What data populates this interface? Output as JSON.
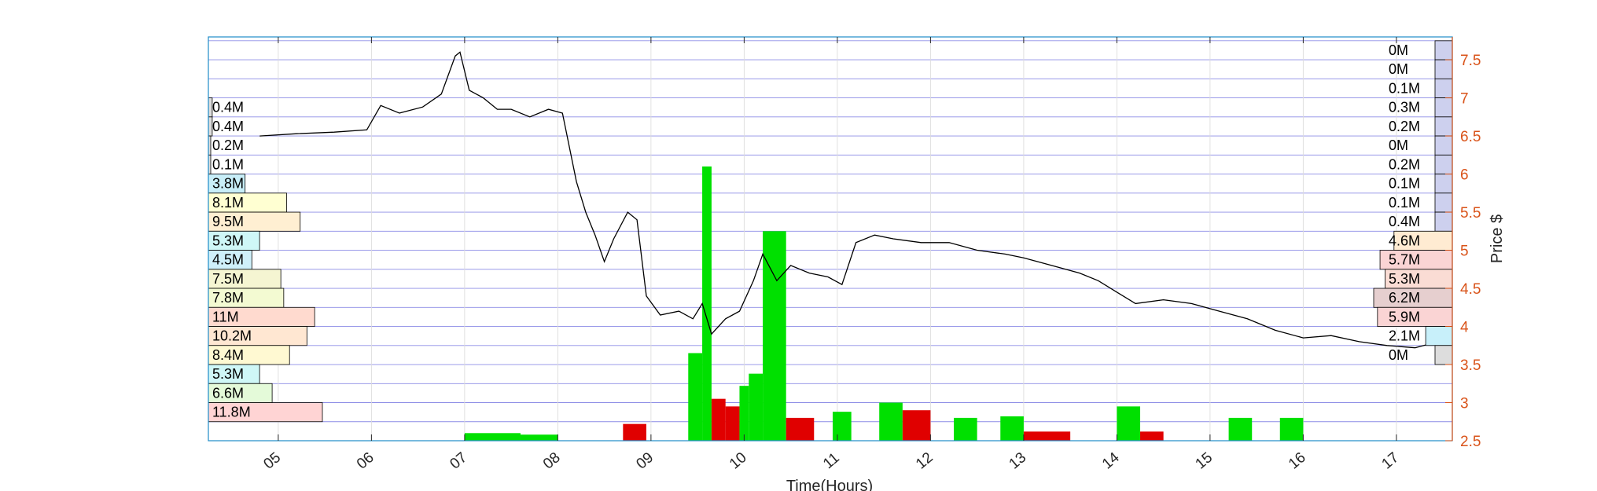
{
  "chart_data": {
    "type": "line",
    "title": "",
    "xlabel": "Time(Hours)",
    "ylabel": "Price $",
    "xlim": [
      4.25,
      17.6
    ],
    "ylim": [
      2.5,
      7.8
    ],
    "x_ticks": [
      "05",
      "06",
      "07",
      "08",
      "09",
      "10",
      "11",
      "12",
      "13",
      "14",
      "15",
      "16",
      "17"
    ],
    "y_ticks": [
      "2.5",
      "3",
      "3.5",
      "4",
      "4.5",
      "5",
      "5.5",
      "6",
      "6.5",
      "7",
      "7.5"
    ],
    "grid": true,
    "price_series": {
      "x": [
        4.8,
        5.2,
        5.6,
        5.95,
        6.1,
        6.3,
        6.55,
        6.75,
        6.9,
        6.95,
        7.05,
        7.2,
        7.35,
        7.5,
        7.7,
        7.9,
        8.05,
        8.2,
        8.3,
        8.4,
        8.5,
        8.6,
        8.75,
        8.85,
        8.95,
        9.1,
        9.3,
        9.45,
        9.55,
        9.65,
        9.8,
        9.95,
        10.1,
        10.2,
        10.35,
        10.5,
        10.7,
        10.9,
        11.05,
        11.2,
        11.4,
        11.6,
        11.9,
        12.2,
        12.5,
        12.8,
        13.0,
        13.3,
        13.6,
        13.8,
        14.0,
        14.2,
        14.5,
        14.8,
        15.1,
        15.4,
        15.7,
        16.0,
        16.3,
        16.6,
        16.9,
        17.2,
        17.45
      ],
      "y": [
        6.5,
        6.53,
        6.55,
        6.58,
        6.9,
        6.8,
        6.88,
        7.05,
        7.55,
        7.6,
        7.1,
        7.0,
        6.85,
        6.85,
        6.75,
        6.85,
        6.8,
        5.9,
        5.5,
        5.2,
        4.85,
        5.15,
        5.5,
        5.4,
        4.4,
        4.15,
        4.2,
        4.1,
        4.3,
        3.9,
        4.1,
        4.2,
        4.6,
        4.95,
        4.6,
        4.8,
        4.7,
        4.65,
        4.55,
        5.1,
        5.2,
        5.15,
        5.1,
        5.1,
        5.0,
        4.95,
        4.9,
        4.8,
        4.7,
        4.6,
        4.45,
        4.3,
        4.35,
        4.3,
        4.2,
        4.1,
        3.95,
        3.85,
        3.88,
        3.8,
        3.75,
        3.72,
        3.8
      ]
    },
    "volume_bars": {
      "bins": [
        {
          "x0": 7.0,
          "x1": 7.6,
          "value": 0.1,
          "color": "#00E000"
        },
        {
          "x0": 7.6,
          "x1": 8.0,
          "value": 0.08,
          "color": "#00E000"
        },
        {
          "x0": 8.7,
          "x1": 8.95,
          "value": 0.22,
          "color": "#E00000"
        },
        {
          "x0": 9.4,
          "x1": 9.55,
          "value": 1.15,
          "color": "#00E000"
        },
        {
          "x0": 9.55,
          "x1": 9.65,
          "value": 3.6,
          "color": "#00E000"
        },
        {
          "x0": 9.65,
          "x1": 9.8,
          "value": 0.55,
          "color": "#E00000"
        },
        {
          "x0": 9.8,
          "x1": 9.95,
          "value": 0.45,
          "color": "#E00000"
        },
        {
          "x0": 9.95,
          "x1": 10.05,
          "value": 0.72,
          "color": "#00E000"
        },
        {
          "x0": 10.05,
          "x1": 10.2,
          "value": 0.88,
          "color": "#00E000"
        },
        {
          "x0": 10.2,
          "x1": 10.45,
          "value": 2.75,
          "color": "#00E000"
        },
        {
          "x0": 10.45,
          "x1": 10.75,
          "value": 0.3,
          "color": "#E00000"
        },
        {
          "x0": 10.95,
          "x1": 11.15,
          "value": 0.38,
          "color": "#00E000"
        },
        {
          "x0": 11.45,
          "x1": 11.7,
          "value": 0.5,
          "color": "#00E000"
        },
        {
          "x0": 11.7,
          "x1": 12.0,
          "value": 0.4,
          "color": "#E00000"
        },
        {
          "x0": 12.25,
          "x1": 12.5,
          "value": 0.3,
          "color": "#00E000"
        },
        {
          "x0": 12.75,
          "x1": 13.0,
          "value": 0.32,
          "color": "#00E000"
        },
        {
          "x0": 13.0,
          "x1": 13.5,
          "value": 0.12,
          "color": "#E00000"
        },
        {
          "x0": 14.0,
          "x1": 14.25,
          "value": 0.45,
          "color": "#00E000"
        },
        {
          "x0": 14.25,
          "x1": 14.5,
          "value": 0.12,
          "color": "#E00000"
        },
        {
          "x0": 15.2,
          "x1": 15.45,
          "value": 0.3,
          "color": "#00E000"
        },
        {
          "x0": 15.75,
          "x1": 16.0,
          "value": 0.3,
          "color": "#00E000"
        }
      ]
    },
    "volume_profile_left": [
      {
        "price_low": 6.75,
        "price_high": 7.0,
        "volume": 0.4,
        "label": "0.4M",
        "color": "#DDDDDD"
      },
      {
        "price_low": 6.5,
        "price_high": 6.75,
        "volume": 0.4,
        "label": "0.4M",
        "color": "#DDDDDD"
      },
      {
        "price_low": 6.25,
        "price_high": 6.5,
        "volume": 0.2,
        "label": "0.2M",
        "color": "#DDDDDD"
      },
      {
        "price_low": 6.0,
        "price_high": 6.25,
        "volume": 0.1,
        "label": "0.1M",
        "color": "#DDDDDD"
      },
      {
        "price_low": 5.75,
        "price_high": 6.0,
        "volume": 3.8,
        "label": "3.8M",
        "color": "#C8EEF8"
      },
      {
        "price_low": 5.5,
        "price_high": 5.75,
        "volume": 8.1,
        "label": "8.1M",
        "color": "#FFFFD2"
      },
      {
        "price_low": 5.25,
        "price_high": 5.5,
        "volume": 9.5,
        "label": "9.5M",
        "color": "#FFEFD2"
      },
      {
        "price_low": 5.0,
        "price_high": 5.25,
        "volume": 5.3,
        "label": "5.3M",
        "color": "#CFF7F7"
      },
      {
        "price_low": 4.75,
        "price_high": 5.0,
        "volume": 4.5,
        "label": "4.5M",
        "color": "#CFF0FA"
      },
      {
        "price_low": 4.5,
        "price_high": 4.75,
        "volume": 7.5,
        "label": "7.5M",
        "color": "#F5F5D2"
      },
      {
        "price_low": 4.25,
        "price_high": 4.5,
        "volume": 7.8,
        "label": "7.8M",
        "color": "#F3FAD2"
      },
      {
        "price_low": 4.0,
        "price_high": 4.25,
        "volume": 11.0,
        "label": "11M",
        "color": "#FFDACF"
      },
      {
        "price_low": 3.75,
        "price_high": 4.0,
        "volume": 10.2,
        "label": "10.2M",
        "color": "#FFE7D2"
      },
      {
        "price_low": 3.5,
        "price_high": 3.75,
        "volume": 8.4,
        "label": "8.4M",
        "color": "#FFF9D2"
      },
      {
        "price_low": 3.25,
        "price_high": 3.5,
        "volume": 5.3,
        "label": "5.3M",
        "color": "#CFF7F7"
      },
      {
        "price_low": 3.0,
        "price_high": 3.25,
        "volume": 6.6,
        "label": "6.6M",
        "color": "#E4FAD9"
      },
      {
        "price_low": 2.75,
        "price_high": 3.0,
        "volume": 11.8,
        "label": "11.8M",
        "color": "#FFD4D4"
      }
    ],
    "volume_profile_right": [
      {
        "price_low": 7.5,
        "price_high": 7.75,
        "volume": 0.0,
        "label": "0M",
        "color": "#CDD0EE"
      },
      {
        "price_low": 7.25,
        "price_high": 7.5,
        "volume": 0.0,
        "label": "0M",
        "color": "#CDD0EE"
      },
      {
        "price_low": 7.0,
        "price_high": 7.25,
        "volume": 0.1,
        "label": "0.1M",
        "color": "#CDD0EE"
      },
      {
        "price_low": 6.75,
        "price_high": 7.0,
        "volume": 0.3,
        "label": "0.3M",
        "color": "#CDD0EE"
      },
      {
        "price_low": 6.5,
        "price_high": 6.75,
        "volume": 0.2,
        "label": "0.2M",
        "color": "#CDD0EE"
      },
      {
        "price_low": 6.25,
        "price_high": 6.5,
        "volume": 0.0,
        "label": "0M",
        "color": "#CDD0EE"
      },
      {
        "price_low": 6.0,
        "price_high": 6.25,
        "volume": 0.2,
        "label": "0.2M",
        "color": "#CDD0EE"
      },
      {
        "price_low": 5.75,
        "price_high": 6.0,
        "volume": 0.1,
        "label": "0.1M",
        "color": "#CDD0EE"
      },
      {
        "price_low": 5.5,
        "price_high": 5.75,
        "volume": 0.1,
        "label": "0.1M",
        "color": "#CDD0EE"
      },
      {
        "price_low": 5.25,
        "price_high": 5.5,
        "volume": 0.4,
        "label": "0.4M",
        "color": "#CDD0EE"
      },
      {
        "price_low": 5.0,
        "price_high": 5.25,
        "volume": 4.6,
        "label": "4.6M",
        "color": "#FFEBD2"
      },
      {
        "price_low": 4.75,
        "price_high": 5.0,
        "volume": 5.7,
        "label": "5.7M",
        "color": "#FAD4D4"
      },
      {
        "price_low": 4.5,
        "price_high": 4.75,
        "volume": 5.3,
        "label": "5.3M",
        "color": "#FADCD4"
      },
      {
        "price_low": 4.25,
        "price_high": 4.5,
        "volume": 6.2,
        "label": "6.2M",
        "color": "#E6CFCF"
      },
      {
        "price_low": 4.0,
        "price_high": 4.25,
        "volume": 5.9,
        "label": "5.9M",
        "color": "#FAD4D4"
      },
      {
        "price_low": 3.75,
        "price_high": 4.0,
        "volume": 2.1,
        "label": "2.1M",
        "color": "#C8F0FA"
      },
      {
        "price_low": 3.5,
        "price_high": 3.75,
        "volume": 0.0,
        "label": "0M",
        "color": "#DDDDDD"
      }
    ],
    "colors": {
      "price_line": "#000000",
      "right_axis": "#D95319",
      "grid_horizontal": "#8C8CE6",
      "grid_vertical": "#DCDCDC",
      "axes_box": "#1E8CC8"
    }
  }
}
